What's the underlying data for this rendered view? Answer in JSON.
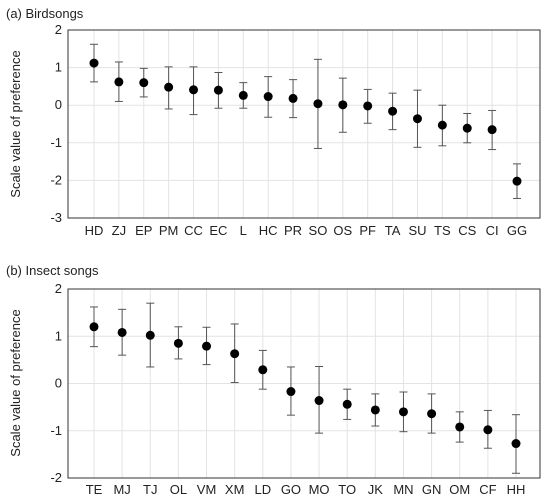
{
  "chart_data": [
    {
      "type": "scatter",
      "title": "(a) Birdsongs",
      "ylabel": "Scale value of preference",
      "ylim": [
        -3,
        2
      ],
      "yticks": [
        -3,
        -2,
        -1,
        0,
        1,
        2
      ],
      "grid": true,
      "categories": [
        "HD",
        "ZJ",
        "EP",
        "PM",
        "CC",
        "EC",
        "L",
        "HC",
        "PR",
        "SO",
        "OS",
        "PF",
        "TA",
        "SU",
        "TS",
        "CS",
        "CI",
        "GG"
      ],
      "values": [
        1.12,
        0.62,
        0.6,
        0.48,
        0.41,
        0.4,
        0.26,
        0.23,
        0.18,
        0.04,
        0.01,
        -0.02,
        -0.16,
        -0.36,
        -0.53,
        -0.61,
        -0.65,
        -2.02
      ],
      "err_low": [
        0.62,
        0.1,
        0.22,
        -0.1,
        -0.25,
        -0.08,
        -0.08,
        -0.32,
        -0.33,
        -1.15,
        -0.72,
        -0.48,
        -0.65,
        -1.12,
        -1.08,
        -1.0,
        -1.18,
        -2.48
      ],
      "err_high": [
        1.62,
        1.15,
        0.98,
        1.02,
        1.02,
        0.87,
        0.6,
        0.76,
        0.68,
        1.22,
        0.72,
        0.42,
        0.32,
        0.4,
        0.0,
        -0.22,
        -0.14,
        -1.56
      ]
    },
    {
      "type": "scatter",
      "title": "(b) Insect songs",
      "ylabel": "Scale value of preference",
      "ylim": [
        -2,
        2
      ],
      "yticks": [
        -2,
        -1,
        0,
        1,
        2
      ],
      "grid": true,
      "categories": [
        "TE",
        "MJ",
        "TJ",
        "OL",
        "VM",
        "XM",
        "LD",
        "GO",
        "MO",
        "TO",
        "JK",
        "MN",
        "GN",
        "OM",
        "CF",
        "HH"
      ],
      "values": [
        1.2,
        1.08,
        1.02,
        0.85,
        0.79,
        0.63,
        0.29,
        -0.17,
        -0.36,
        -0.44,
        -0.56,
        -0.6,
        -0.64,
        -0.92,
        -0.98,
        -1.27
      ],
      "err_low": [
        0.78,
        0.6,
        0.35,
        0.52,
        0.4,
        0.02,
        -0.12,
        -0.67,
        -1.05,
        -0.76,
        -0.9,
        -1.02,
        -1.05,
        -1.24,
        -1.37,
        -1.9
      ],
      "err_high": [
        1.62,
        1.57,
        1.7,
        1.2,
        1.19,
        1.26,
        0.7,
        0.35,
        0.36,
        -0.12,
        -0.22,
        -0.18,
        -0.22,
        -0.6,
        -0.57,
        -0.66
      ]
    }
  ]
}
